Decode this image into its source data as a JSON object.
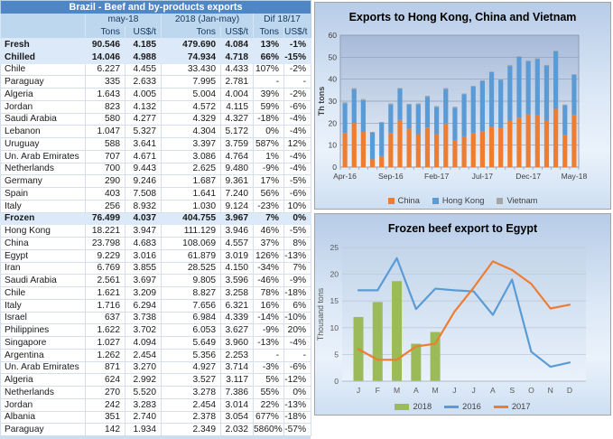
{
  "table": {
    "title": "Brazil - Beef and by-products exports",
    "col_groups": [
      "may-18",
      "2018 (Jan-may)",
      "Dif 18/17"
    ],
    "sub_headers": [
      "",
      "Tons",
      "US$/t",
      "Tons",
      "US$/t",
      "Tons",
      "US$/t"
    ],
    "colors": {
      "header_bg": "#4F86C6",
      "subheader_bg": "#BDD7EE",
      "summary_bg": "#DBE9F8"
    },
    "rows": [
      {
        "label": "Fresh",
        "bold": true,
        "cells": [
          "90.546",
          "4.185",
          "479.690",
          "4.084",
          "13%",
          "-1%"
        ]
      },
      {
        "label": "Chilled",
        "bold": true,
        "cells": [
          "14.046",
          "4.988",
          "74.934",
          "4.718",
          "66%",
          "-15%"
        ]
      },
      {
        "label": "Chile",
        "bold": false,
        "cells": [
          "6.227",
          "4.455",
          "33.430",
          "4.433",
          "107%",
          "-2%"
        ]
      },
      {
        "label": "Paraguay",
        "bold": false,
        "cells": [
          "335",
          "2.633",
          "7.995",
          "2.781",
          "-",
          "-"
        ]
      },
      {
        "label": "Algeria",
        "bold": false,
        "cells": [
          "1.643",
          "4.005",
          "5.004",
          "4.004",
          "39%",
          "-2%"
        ]
      },
      {
        "label": "Jordan",
        "bold": false,
        "cells": [
          "823",
          "4.132",
          "4.572",
          "4.115",
          "59%",
          "-6%"
        ]
      },
      {
        "label": "Saudi Arabia",
        "bold": false,
        "cells": [
          "580",
          "4.277",
          "4.329",
          "4.327",
          "-18%",
          "-4%"
        ]
      },
      {
        "label": "Lebanon",
        "bold": false,
        "cells": [
          "1.047",
          "5.327",
          "4.304",
          "5.172",
          "0%",
          "-4%"
        ]
      },
      {
        "label": "Uruguay",
        "bold": false,
        "cells": [
          "588",
          "3.641",
          "3.397",
          "3.759",
          "587%",
          "12%"
        ]
      },
      {
        "label": "Un. Arab Emirates",
        "bold": false,
        "cells": [
          "707",
          "4.671",
          "3.086",
          "4.764",
          "1%",
          "-4%"
        ]
      },
      {
        "label": "Netherlands",
        "bold": false,
        "cells": [
          "700",
          "9.443",
          "2.625",
          "9.480",
          "-9%",
          "-4%"
        ]
      },
      {
        "label": "Germany",
        "bold": false,
        "cells": [
          "290",
          "9.246",
          "1.687",
          "9.361",
          "17%",
          "-5%"
        ]
      },
      {
        "label": "Spain",
        "bold": false,
        "cells": [
          "403",
          "7.508",
          "1.641",
          "7.240",
          "56%",
          "-6%"
        ]
      },
      {
        "label": "Italy",
        "bold": false,
        "cells": [
          "256",
          "8.932",
          "1.030",
          "9.124",
          "-23%",
          "10%"
        ]
      },
      {
        "label": "Frozen",
        "bold": true,
        "cells": [
          "76.499",
          "4.037",
          "404.755",
          "3.967",
          "7%",
          "0%"
        ]
      },
      {
        "label": "Hong Kong",
        "bold": false,
        "cells": [
          "18.221",
          "3.947",
          "111.129",
          "3.946",
          "46%",
          "-5%"
        ]
      },
      {
        "label": "China",
        "bold": false,
        "cells": [
          "23.798",
          "4.683",
          "108.069",
          "4.557",
          "37%",
          "8%"
        ]
      },
      {
        "label": "Egypt",
        "bold": false,
        "cells": [
          "9.229",
          "3.016",
          "61.879",
          "3.019",
          "126%",
          "-13%"
        ]
      },
      {
        "label": "Iran",
        "bold": false,
        "cells": [
          "6.769",
          "3.855",
          "28.525",
          "4.150",
          "-34%",
          "7%"
        ]
      },
      {
        "label": "Saudi Arabia",
        "bold": false,
        "cells": [
          "2.561",
          "3.697",
          "9.805",
          "3.596",
          "-46%",
          "-9%"
        ]
      },
      {
        "label": "Chile",
        "bold": false,
        "cells": [
          "1.621",
          "3.209",
          "8.827",
          "3.258",
          "78%",
          "-18%"
        ]
      },
      {
        "label": "Italy",
        "bold": false,
        "cells": [
          "1.716",
          "6.294",
          "7.656",
          "6.321",
          "16%",
          "6%"
        ]
      },
      {
        "label": "Israel",
        "bold": false,
        "cells": [
          "637",
          "3.738",
          "6.984",
          "4.339",
          "-14%",
          "-10%"
        ]
      },
      {
        "label": "Philippines",
        "bold": false,
        "cells": [
          "1.622",
          "3.702",
          "6.053",
          "3.627",
          "-9%",
          "20%"
        ]
      },
      {
        "label": "Singapore",
        "bold": false,
        "cells": [
          "1.027",
          "4.094",
          "5.649",
          "3.960",
          "-13%",
          "-4%"
        ]
      },
      {
        "label": "Argentina",
        "bold": false,
        "cells": [
          "1.262",
          "2.454",
          "5.356",
          "2.253",
          "-",
          "-"
        ]
      },
      {
        "label": "Un. Arab Emirates",
        "bold": false,
        "cells": [
          "871",
          "3.270",
          "4.927",
          "3.714",
          "-3%",
          "-6%"
        ]
      },
      {
        "label": "Algeria",
        "bold": false,
        "cells": [
          "624",
          "2.992",
          "3.527",
          "3.117",
          "5%",
          "-12%"
        ]
      },
      {
        "label": "Netherlands",
        "bold": false,
        "cells": [
          "270",
          "5.520",
          "3.278",
          "7.386",
          "55%",
          "0%"
        ]
      },
      {
        "label": "Jordan",
        "bold": false,
        "cells": [
          "242",
          "3.283",
          "2.454",
          "3.014",
          "22%",
          "-13%"
        ]
      },
      {
        "label": "Albania",
        "bold": false,
        "cells": [
          "351",
          "2.740",
          "2.378",
          "3.054",
          "677%",
          "-18%"
        ]
      },
      {
        "label": "Paraguay",
        "bold": false,
        "cells": [
          "142",
          "1.934",
          "2.349",
          "2.032",
          "5860%",
          "-57%"
        ]
      }
    ]
  },
  "chart_data": [
    {
      "type": "bar",
      "stacked": true,
      "title": "Exports to Hong Kong, China and Vietnam",
      "ylabel": "Th tons",
      "ylim": [
        0,
        60
      ],
      "yticks": [
        0,
        10,
        20,
        30,
        40,
        50,
        60
      ],
      "grid": true,
      "legend_position": "bottom",
      "categories": [
        "Apr-16",
        "May-16",
        "Jun-16",
        "Jul-16",
        "Aug-16",
        "Sep-16",
        "Oct-16",
        "Nov-16",
        "Dec-16",
        "Jan-17",
        "Feb-17",
        "Mar-17",
        "Apr-17",
        "May-17",
        "Jun-17",
        "Jul-17",
        "Aug-17",
        "Sep-17",
        "Oct-17",
        "Nov-17",
        "Dec-17",
        "Jan-18",
        "Feb-18",
        "Mar-18",
        "Apr-18",
        "May-18"
      ],
      "xtick_labels": [
        "Apr-16",
        "Sep-16",
        "Feb-17",
        "Jul-17",
        "Dec-17",
        "May-18"
      ],
      "xtick_indices": [
        0,
        5,
        10,
        15,
        20,
        25
      ],
      "series": [
        {
          "name": "China",
          "color": "#ED7D31",
          "swatch": "sq",
          "values": [
            15.5,
            20,
            16,
            3.5,
            5,
            15.5,
            21.5,
            17.5,
            15,
            18,
            15,
            19.8,
            12,
            14,
            15.5,
            16.3,
            18.3,
            17.9,
            21,
            22.5,
            24,
            23.5,
            21,
            26.5,
            14.5,
            23.8
          ]
        },
        {
          "name": "Hong Kong",
          "color": "#5B9BD5",
          "swatch": "sq",
          "values": [
            13.5,
            15.4,
            14.5,
            12.3,
            15.3,
            13,
            14.2,
            11,
            13.6,
            13.9,
            12.3,
            15.7,
            14.9,
            19.2,
            21.2,
            22.9,
            24.9,
            21.8,
            25,
            27.7,
            24.2,
            25.7,
            25.2,
            26.2,
            13.6,
            18.2
          ]
        },
        {
          "name": "Vietnam",
          "color": "#A5A5A5",
          "swatch": "sq",
          "values": [
            0.5,
            0.6,
            0.5,
            0.2,
            0.2,
            0.5,
            0.3,
            0.3,
            0.4,
            0.6,
            0.5,
            0.5,
            0.6,
            0.3,
            0.3,
            0.3,
            0.3,
            0.3,
            0.5,
            0.3,
            0.3,
            0.3,
            0.3,
            0.3,
            0.4,
            0.3
          ]
        }
      ]
    },
    {
      "type": "combo",
      "title": "Frozen beef export to Egypt",
      "ylabel": "Thousand tons",
      "ylim": [
        0,
        25
      ],
      "yticks": [
        0,
        5,
        10,
        15,
        20,
        25
      ],
      "grid": true,
      "legend_position": "bottom",
      "categories": [
        "J",
        "F",
        "M",
        "A",
        "M",
        "J",
        "J",
        "A",
        "S",
        "O",
        "N",
        "D"
      ],
      "series": [
        {
          "name": "2018",
          "type": "bar",
          "color": "#9BBB59",
          "swatch": "bar",
          "values": [
            12,
            14.8,
            18.7,
            7,
            9.2,
            null,
            null,
            null,
            null,
            null,
            null,
            null
          ]
        },
        {
          "name": "2016",
          "type": "line",
          "color": "#5B9BD5",
          "swatch": "line",
          "values": [
            17,
            17,
            23,
            13.5,
            17.3,
            17,
            16.8,
            12.4,
            19,
            5.5,
            2.7,
            3.5
          ]
        },
        {
          "name": "2017",
          "type": "line",
          "color": "#ED7D31",
          "swatch": "line",
          "values": [
            6,
            4,
            4,
            6.5,
            7,
            13,
            17.5,
            22.4,
            20.8,
            18.2,
            13.6,
            14.3
          ]
        }
      ]
    }
  ]
}
